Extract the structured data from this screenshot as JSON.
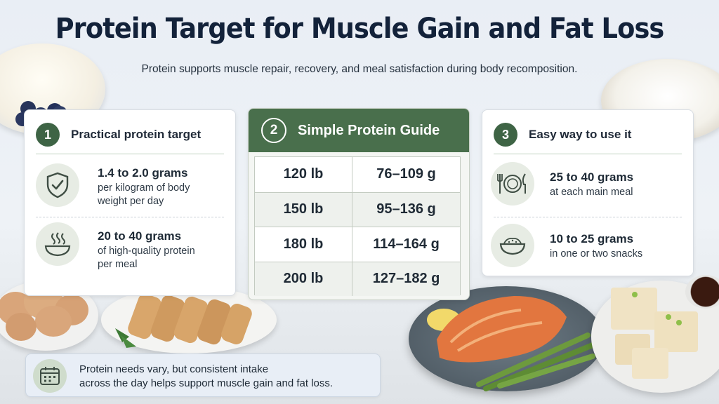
{
  "title": "Protein Target for Muscle Gain and Fat Loss",
  "subtitle": "Protein supports muscle repair, recovery, and meal satisfaction during body recomposition.",
  "colors": {
    "accent_green": "#496f4c",
    "badge_green": "#3e6445",
    "title_navy": "#13223a"
  },
  "card1": {
    "number": "1",
    "title": "Practical protein target",
    "items": [
      {
        "icon": "shield-check-icon",
        "main": "1.4 to 2.0 grams",
        "sub_line1": "per kilogram of body",
        "sub_line2": "weight per day"
      },
      {
        "icon": "steaming-bowl-icon",
        "main": "20 to 40 grams",
        "sub_line1": "of high-quality protein",
        "sub_line2": "per meal"
      }
    ]
  },
  "card2": {
    "number": "2",
    "title": "Simple Protein Guide",
    "rows": [
      {
        "weight": "120 lb",
        "protein": "76–109 g"
      },
      {
        "weight": "150 lb",
        "protein": "95–136 g"
      },
      {
        "weight": "180 lb",
        "protein": "114–164 g"
      },
      {
        "weight": "200 lb",
        "protein": "127–182 g"
      }
    ]
  },
  "card3": {
    "number": "3",
    "title": "Easy way to use it",
    "items": [
      {
        "icon": "plate-fork-knife-icon",
        "main": "25 to 40 grams",
        "sub": "at each main meal"
      },
      {
        "icon": "snack-bowl-icon",
        "main": "10 to 25 grams",
        "sub": "in one or two snacks"
      }
    ]
  },
  "note": {
    "icon": "calendar-icon",
    "line1": "Protein needs vary, but consistent intake",
    "line2": "across the day helps support muscle gain and fat loss."
  }
}
